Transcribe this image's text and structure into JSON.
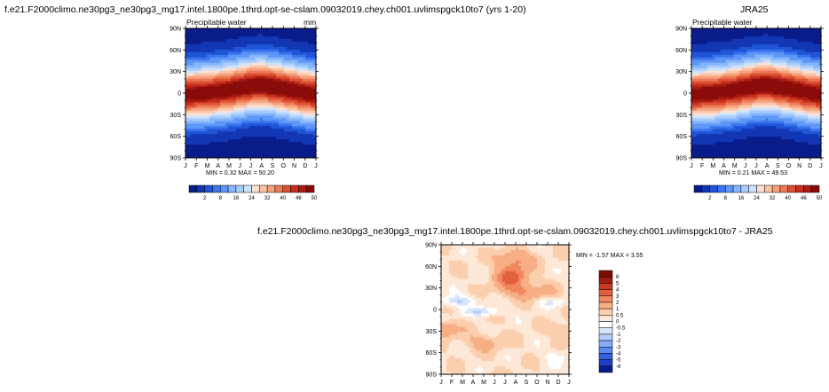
{
  "colors": {
    "pw_scale": [
      "#0a1c8a",
      "#1236b4",
      "#1f55d6",
      "#3a74ee",
      "#5f97f6",
      "#86b6fb",
      "#aacdfc",
      "#cde2fd",
      "#fce1d3",
      "#fbc4a6",
      "#f6a17c",
      "#ec7a56",
      "#db5133",
      "#c62f1d",
      "#aa1a12",
      "#8a0c0a"
    ],
    "diff_scale": [
      "#0a1c8a",
      "#1e40c4",
      "#3561e0",
      "#5b89f0",
      "#86acf6",
      "#b0cbfa",
      "#d8e6fd",
      "#ffffff",
      "#fde8d8",
      "#fbcfae",
      "#f8ae85",
      "#f0875e",
      "#e2603d",
      "#c83a22",
      "#a01c10",
      "#7a0c08"
    ]
  },
  "model_panel": {
    "title": "f.e21.F2000climo.ne30pg3_ne30pg3_mg17.intel.1800pe.1thrd.opt-se-cslam.09032019.chey.ch001.uvlimspgck10to7 (yrs 1-20)",
    "subtitle": "Precipitable water",
    "units": "mm",
    "min_max": "MIN =  0.32 MAX =  50.20"
  },
  "obs_panel": {
    "title": "JRA25",
    "subtitle": "Precipitable water",
    "min_max": "MIN =  0.21 MAX =  49.53"
  },
  "diff_panel": {
    "title": "f.e21.F2000climo.ne30pg3_ne30pg3_mg17.intel.1800pe.1thrd.opt-se-cslam.09032019.chey.ch001.uvlimspgck10to7 - JRA25",
    "min_max": "MIN =  -1.57 MAX =   3.55"
  },
  "chart_data": [
    {
      "type": "heatmap",
      "name": "model-precipitable-water",
      "title": "f.e21.F2000climo.ne30pg3_ne30pg3_mg17.intel.1800pe.1thrd.opt-se-cslam.09032019.chey.ch001.uvlimspgck10to7 (yrs 1-20)",
      "subtitle": "Precipitable water",
      "units": "mm",
      "x_tick_labels": [
        "J",
        "F",
        "M",
        "A",
        "M",
        "J",
        "J",
        "A",
        "S",
        "O",
        "N",
        "D",
        "J"
      ],
      "y_tick_labels": [
        "90N",
        "60N",
        "30N",
        "0",
        "30S",
        "60S",
        "90S"
      ],
      "ylim": [
        -90,
        90
      ],
      "min": 0.32,
      "max": 50.2,
      "colorbar_labels": [
        "2",
        "8",
        "16",
        "24",
        "32",
        "40",
        "46",
        "50"
      ],
      "colorbar_levels": [
        1,
        2,
        4,
        6,
        8,
        12,
        16,
        20,
        24,
        28,
        32,
        36,
        40,
        44,
        46,
        48,
        50
      ],
      "approx_peak_latitude_by_month": [
        -2,
        -1,
        0,
        2,
        4,
        7,
        10,
        11,
        9,
        6,
        3,
        0,
        -2
      ]
    },
    {
      "type": "heatmap",
      "name": "jra25-precipitable-water",
      "title": "JRA25",
      "subtitle": "Precipitable water",
      "x_tick_labels": [
        "J",
        "F",
        "M",
        "A",
        "M",
        "J",
        "J",
        "A",
        "S",
        "O",
        "N",
        "D",
        "J"
      ],
      "y_tick_labels": [
        "90N",
        "60N",
        "30N",
        "0",
        "30S",
        "60S",
        "90S"
      ],
      "ylim": [
        -90,
        90
      ],
      "min": 0.21,
      "max": 49.53,
      "colorbar_labels": [
        "2",
        "8",
        "16",
        "24",
        "32",
        "40",
        "46",
        "50"
      ],
      "colorbar_levels": [
        1,
        2,
        4,
        6,
        8,
        12,
        16,
        20,
        24,
        28,
        32,
        36,
        40,
        44,
        46,
        48,
        50
      ],
      "approx_peak_latitude_by_month": [
        -2,
        -1,
        0,
        2,
        4,
        7,
        10,
        11,
        9,
        6,
        3,
        0,
        -2
      ]
    },
    {
      "type": "heatmap",
      "name": "difference-model-minus-jra25",
      "title": "f.e21.F2000climo.ne30pg3_ne30pg3_mg17.intel.1800pe.1thrd.opt-se-cslam.09032019.chey.ch001.uvlimspgck10to7 - JRA25",
      "x_tick_labels": [
        "J",
        "F",
        "M",
        "A",
        "M",
        "J",
        "J",
        "A",
        "S",
        "O",
        "N",
        "D",
        "J"
      ],
      "y_tick_labels": [
        "90N",
        "60N",
        "30N",
        "0",
        "30S",
        "60S",
        "90S"
      ],
      "ylim": [
        -90,
        90
      ],
      "min": -1.57,
      "max": 3.55,
      "colorbar_labels": [
        "6",
        "5",
        "4",
        "3",
        "2",
        "1",
        "0.5",
        "0",
        "-0.5",
        "-1",
        "-2",
        "-3",
        "-4",
        "-5",
        "-6"
      ],
      "features": [
        {
          "lat": 45,
          "month": 6.5,
          "value": 3.5
        },
        {
          "lat": 30,
          "month": 7.5,
          "value": 2.5
        },
        {
          "lat": 15,
          "month": 1.5,
          "value": -1.2
        },
        {
          "lat": -5,
          "month": 4.0,
          "value": -1.0
        },
        {
          "lat": -25,
          "month": 0.5,
          "value": 1.5
        }
      ]
    }
  ]
}
